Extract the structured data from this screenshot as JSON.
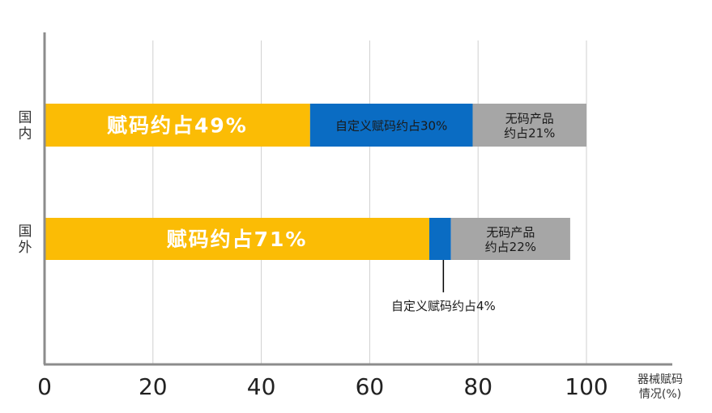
{
  "chart_data": {
    "type": "bar",
    "orientation": "horizontal",
    "stacked": true,
    "categories": [
      "国内",
      "国外"
    ],
    "series": [
      {
        "key": "coded",
        "values": [
          49,
          71
        ],
        "color": "#FBBC05",
        "labels": [
          "赋码约占49%",
          "赋码约占71%"
        ]
      },
      {
        "key": "custom",
        "values": [
          30,
          4
        ],
        "color": "#0A6CC3",
        "labels": [
          "自定义赋码约占30%",
          "自定义赋码约占4%"
        ]
      },
      {
        "key": "uncoded",
        "values": [
          21,
          22
        ],
        "color": "#A6A6A6",
        "labels": [
          "无码产品约占21%",
          "无码产品约占22%"
        ]
      }
    ],
    "xlim": [
      0,
      100
    ],
    "xticks": [
      0,
      20,
      40,
      60,
      80,
      100
    ],
    "xlabel": "器械赋码情况(%)",
    "grid": true
  }
}
